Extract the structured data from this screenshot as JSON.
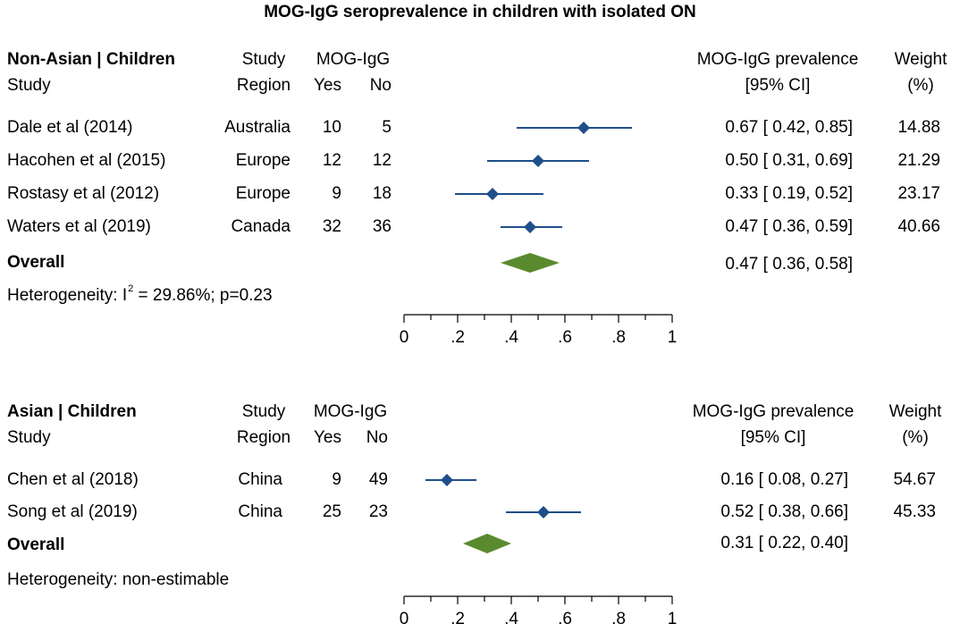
{
  "title": "MOG-IgG seroprevalence in children with isolated ON",
  "colors": {
    "marker": "#1f4e8c",
    "overall": "#5a8a2e",
    "axis": "#000000"
  },
  "panels": [
    {
      "header": {
        "group": "Non-Asian | Children",
        "study": "Study",
        "region_top": "Study",
        "region_bottom": "Region",
        "mog": "MOG-IgG",
        "yes": "Yes",
        "no": "No",
        "prev_top": "MOG-IgG prevalence",
        "prev_bottom": "[95% CI]",
        "weight_top": "Weight",
        "weight_bottom": "(%)"
      },
      "rows": [
        {
          "study": "Dale et al (2014)",
          "region": "Australia",
          "yes": "10",
          "no": "5",
          "est": "0.67",
          "lo": "0.42",
          "hi": "0.85",
          "ci_text": "0.67 [ 0.42,  0.85]",
          "weight": "14.88"
        },
        {
          "study": "Hacohen et al (2015)",
          "region": "Europe",
          "yes": "12",
          "no": "12",
          "est": "0.50",
          "lo": "0.31",
          "hi": "0.69",
          "ci_text": "0.50 [ 0.31,  0.69]",
          "weight": "21.29"
        },
        {
          "study": "Rostasy et al (2012)",
          "region": "Europe",
          "yes": "9",
          "no": "18",
          "est": "0.33",
          "lo": "0.19",
          "hi": "0.52",
          "ci_text": "0.33 [ 0.19,  0.52]",
          "weight": "23.17"
        },
        {
          "study": "Waters et al (2019)",
          "region": "Canada",
          "yes": "32",
          "no": "36",
          "est": "0.47",
          "lo": "0.36",
          "hi": "0.59",
          "ci_text": "0.47 [ 0.36,  0.59]",
          "weight": "40.66"
        }
      ],
      "overall": {
        "label": "Overall",
        "est": "0.47",
        "lo": "0.36",
        "hi": "0.58",
        "ci_text": "0.47 [ 0.36,  0.58]"
      },
      "heterogeneity_prefix": "Heterogeneity: I",
      "heterogeneity_sup": "2",
      "heterogeneity_suffix": " = 29.86%; p=0.23",
      "ticks": [
        "0",
        ".2",
        ".4",
        ".6",
        ".8",
        "1"
      ]
    },
    {
      "header": {
        "group": "Asian | Children",
        "study": "Study",
        "region_top": "Study",
        "region_bottom": "Region",
        "mog": "MOG-IgG",
        "yes": "Yes",
        "no": "No",
        "prev_top": "MOG-IgG prevalence",
        "prev_bottom": "[95% CI]",
        "weight_top": "Weight",
        "weight_bottom": "(%)"
      },
      "rows": [
        {
          "study": "Chen et al (2018)",
          "region": "China",
          "yes": "9",
          "no": "49",
          "est": "0.16",
          "lo": "0.08",
          "hi": "0.27",
          "ci_text": "0.16 [ 0.08,  0.27]",
          "weight": "54.67"
        },
        {
          "study": "Song et al (2019)",
          "region": "China",
          "yes": "25",
          "no": "23",
          "est": "0.52",
          "lo": "0.38",
          "hi": "0.66",
          "ci_text": "0.52 [ 0.38,  0.66]",
          "weight": "45.33"
        }
      ],
      "overall": {
        "label": "Overall",
        "est": "0.31",
        "lo": "0.22",
        "hi": "0.40",
        "ci_text": "0.31 [ 0.22,  0.40]"
      },
      "heterogeneity_text": "Heterogeneity: non-estimable",
      "ticks": [
        "0",
        ".2",
        ".4",
        ".6",
        ".8",
        "1"
      ]
    }
  ],
  "chart_data": {
    "type": "forest",
    "title": "MOG-IgG seroprevalence in children with isolated ON",
    "xlabel": "",
    "ylabel": "",
    "xlim": [
      0,
      1
    ],
    "xticks": [
      0,
      0.2,
      0.4,
      0.6,
      0.8,
      1
    ],
    "groups": [
      {
        "name": "Non-Asian | Children",
        "studies": [
          {
            "name": "Dale et al (2014)",
            "region": "Australia",
            "yes": 10,
            "no": 5,
            "estimate": 0.67,
            "ci": [
              0.42,
              0.85
            ],
            "weight": 14.88
          },
          {
            "name": "Hacohen et al (2015)",
            "region": "Europe",
            "yes": 12,
            "no": 12,
            "estimate": 0.5,
            "ci": [
              0.31,
              0.69
            ],
            "weight": 21.29
          },
          {
            "name": "Rostasy et al (2012)",
            "region": "Europe",
            "yes": 9,
            "no": 18,
            "estimate": 0.33,
            "ci": [
              0.19,
              0.52
            ],
            "weight": 23.17
          },
          {
            "name": "Waters et al (2019)",
            "region": "Canada",
            "yes": 32,
            "no": 36,
            "estimate": 0.47,
            "ci": [
              0.36,
              0.59
            ],
            "weight": 40.66
          }
        ],
        "overall": {
          "estimate": 0.47,
          "ci": [
            0.36,
            0.58
          ]
        },
        "heterogeneity": {
          "I2_percent": 29.86,
          "p": 0.23
        }
      },
      {
        "name": "Asian | Children",
        "studies": [
          {
            "name": "Chen et al (2018)",
            "region": "China",
            "yes": 9,
            "no": 49,
            "estimate": 0.16,
            "ci": [
              0.08,
              0.27
            ],
            "weight": 54.67
          },
          {
            "name": "Song et al (2019)",
            "region": "China",
            "yes": 25,
            "no": 23,
            "estimate": 0.52,
            "ci": [
              0.38,
              0.66
            ],
            "weight": 45.33
          }
        ],
        "overall": {
          "estimate": 0.31,
          "ci": [
            0.22,
            0.4
          ]
        },
        "heterogeneity": "non-estimable"
      }
    ]
  }
}
